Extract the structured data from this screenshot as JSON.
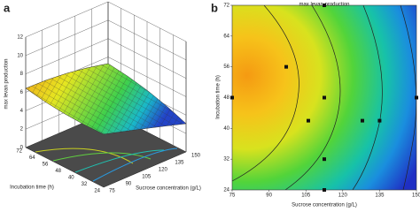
{
  "chart_data": [
    {
      "type": "surface3d",
      "label": "a",
      "zlabel": "max levan production",
      "ylabel": "Incubation time (h)",
      "xlabel": "Sucrose concentration (g/L)",
      "xlim": [
        75,
        150
      ],
      "xticks": [
        75,
        90,
        105,
        120,
        135,
        150
      ],
      "ylim": [
        24,
        72
      ],
      "yticks": [
        24,
        32,
        40,
        48,
        56,
        64,
        72
      ],
      "zlim": [
        0,
        12
      ],
      "zticks": [
        0,
        2,
        4,
        6,
        8,
        10,
        12
      ]
    },
    {
      "type": "contour",
      "label": "b",
      "title": "max levan production",
      "xlabel": "Sucrose concentration (g/L)",
      "ylabel": "Incubation time (h)",
      "xlim": [
        75,
        150
      ],
      "xticks": [
        75,
        90,
        105,
        120,
        135,
        150
      ],
      "ylim": [
        24,
        72
      ],
      "yticks": [
        24,
        32,
        40,
        48,
        56,
        64,
        72
      ],
      "x": [
        75,
        97,
        112.5,
        112.5,
        106,
        112.5,
        128,
        135,
        112.5,
        150
      ],
      "y": [
        48,
        56,
        72,
        48,
        42,
        24,
        42,
        42,
        32,
        48
      ]
    }
  ]
}
